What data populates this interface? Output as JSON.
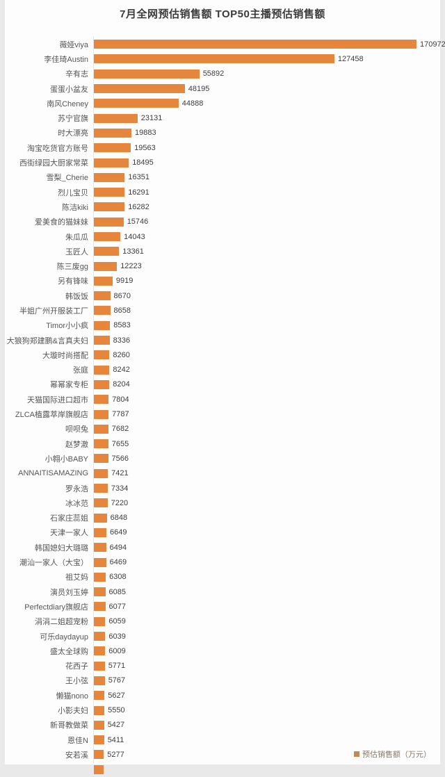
{
  "chart_data": {
    "type": "bar",
    "orientation": "horizontal",
    "title": "7月全网预估销售额 TOP50主播预估销售额",
    "legend_label": "预估销售额（万元）",
    "legend_position": "bottom-right",
    "bar_color": "#e5863c",
    "legend_swatch_color": "#c08a54",
    "value_unit": "万元",
    "grid": false,
    "xlim": [
      0,
      170972
    ],
    "categories": [
      "薇娅viya",
      "李佳琦Austin",
      "辛有志",
      "蛋蛋小盆友",
      "南风Cheney",
      "苏宁官旗",
      "时大漂亮",
      "淘宝吃货官方账号",
      "西街绿园大厨家常菜",
      "雪梨_Cherie",
      "烈儿宝贝",
      "陈洁kiki",
      "爱美食的猫妹妹",
      "朱瓜瓜",
      "玉匠人",
      "陈三废gg",
      "另有锋味",
      "韩饭饭",
      "半姐广州开服装工厂",
      "Timor小小疯",
      "大狼狗郑建鹏&言真夫妇",
      "大璇时尚搭配",
      "张庭",
      "幂幂家专柜",
      "天猫国际进口超市",
      "ZLCA植露萃岸旗舰店",
      "呗呗兔",
      "赵梦澈",
      "小翱小BABY",
      "ANNAITISAMAZING",
      "罗永浩",
      "冰冰范",
      "石家庄蕊姐",
      "天津一家人",
      "韩国媳妇大璐璐",
      "潮汕一家人（大宝）",
      "祖艾妈",
      "演员刘玉婷",
      "Perfectdiary旗舰店",
      "涓涓二姐超宠粉",
      "可乐daydayup",
      "盛太全球购",
      "花西子",
      "王小弦",
      "懒猫nono",
      "小影夫妇",
      "新哥教做菜",
      "恩佳N",
      "安若溪"
    ],
    "values": [
      170972,
      127458,
      55892,
      48195,
      44888,
      23131,
      19883,
      19563,
      18495,
      16351,
      16291,
      16282,
      15746,
      14043,
      13361,
      12223,
      9919,
      8670,
      8658,
      8583,
      8336,
      8260,
      8242,
      8204,
      7804,
      7787,
      7682,
      7655,
      7566,
      7421,
      7334,
      7220,
      6848,
      6649,
      6494,
      6469,
      6308,
      6085,
      6077,
      6059,
      6039,
      6009,
      5771,
      5767,
      5627,
      5550,
      5427,
      5411,
      5277
    ],
    "additional_bar_clipped_at_bottom": true
  }
}
